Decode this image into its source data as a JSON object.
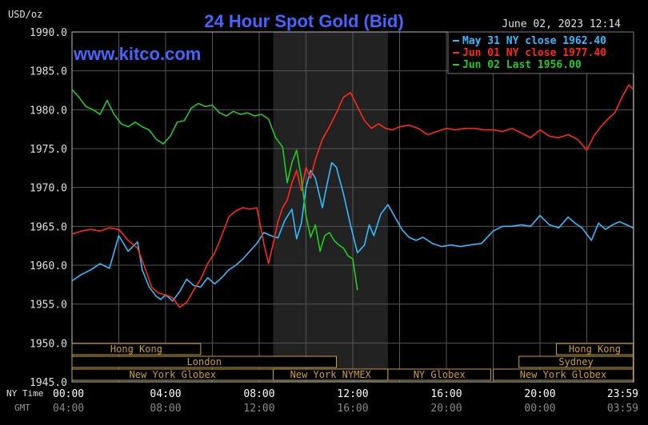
{
  "chart_data": {
    "type": "line",
    "title": "24 Hour Spot Gold (Bid)",
    "watermark": "www.kitco.com",
    "timestamp": "June 02, 2023 12:14",
    "unit_label": "USD/oz",
    "ylim": [
      1945.0,
      1990.0
    ],
    "y_ticks": [
      "1990.0",
      "1985.0",
      "1980.0",
      "1975.0",
      "1970.0",
      "1965.0",
      "1960.0",
      "1955.0",
      "1950.0",
      "1945.0"
    ],
    "x_axis_labels": {
      "ny_time_label": "NY Time",
      "gmt_label": "GMT",
      "ny_time": [
        "00:00",
        "04:00",
        "08:00",
        "12:00",
        "16:00",
        "20:00",
        "23:59"
      ],
      "gmt": [
        "04:00",
        "08:00",
        "12:00",
        "16:00",
        "20:00",
        "00:00",
        "03:59"
      ]
    },
    "grid": true,
    "legend_position": "top-right",
    "legend": [
      {
        "text": "May 31 NY close 1962.40",
        "color": "#33bbff"
      },
      {
        "text": "Jun 01 NY close 1977.40",
        "color": "#ff2a1a"
      },
      {
        "text": "Jun 02 Last 1956.00",
        "color": "#22cc22"
      }
    ],
    "sessions": [
      {
        "label": "Hong Kong",
        "start_h": 0.0,
        "end_h": 5.5
      },
      {
        "label": "London",
        "start_h": 0.0,
        "end_h": 11.3
      },
      {
        "label": "New York Globex",
        "start_h": 0.0,
        "end_h": 8.6
      },
      {
        "label": "New York NYMEX",
        "start_h": 8.6,
        "end_h": 13.5
      },
      {
        "label": "NY Globex",
        "start_h": 13.5,
        "end_h": 17.9
      },
      {
        "label": "Sydney",
        "start_h": 19.1,
        "end_h": 23.98
      },
      {
        "label": "Hong Kong",
        "start_h": 20.7,
        "end_h": 23.98
      },
      {
        "label": "New York Globex",
        "start_h": 18.0,
        "end_h": 23.98
      }
    ],
    "series": [
      {
        "name": "May 31",
        "color": "#33bbff",
        "x": [
          0,
          0.4,
          0.8,
          1.2,
          1.6,
          2.0,
          2.4,
          2.8,
          3.0,
          3.3,
          3.6,
          3.8,
          4.0,
          4.3,
          4.6,
          4.9,
          5.2,
          5.5,
          5.8,
          6.1,
          6.4,
          6.7,
          7.0,
          7.3,
          7.6,
          7.9,
          8.2,
          8.5,
          8.8,
          9.1,
          9.4,
          9.6,
          9.8,
          10.0,
          10.2,
          10.4,
          10.7,
          10.9,
          11.1,
          11.3,
          11.6,
          11.9,
          12.2,
          12.5,
          12.7,
          12.9,
          13.2,
          13.5,
          13.8,
          14.1,
          14.4,
          14.7,
          15.0,
          15.4,
          15.8,
          16.2,
          16.6,
          17.0,
          17.5,
          18.0,
          18.4,
          18.8,
          19.2,
          19.6,
          20.0,
          20.4,
          20.8,
          21.2,
          21.5,
          21.8,
          22.2,
          22.5,
          22.8,
          23.1,
          23.4,
          23.7,
          23.98
        ],
        "values": [
          1958,
          1958.8,
          1959.4,
          1960.2,
          1959.6,
          1963.8,
          1961.8,
          1963,
          1959.4,
          1957.2,
          1956,
          1955.6,
          1956.2,
          1955.4,
          1956.6,
          1958.2,
          1957.4,
          1957.2,
          1958.4,
          1957.6,
          1958.4,
          1959.4,
          1960,
          1960.8,
          1961.8,
          1962.8,
          1964.2,
          1963.8,
          1963.5,
          1965.8,
          1967.2,
          1963.4,
          1965.4,
          1970,
          1972.2,
          1971.2,
          1967.4,
          1970.4,
          1973.2,
          1972.6,
          1969.2,
          1965.2,
          1961.6,
          1962.6,
          1965.2,
          1963.8,
          1966.6,
          1967.8,
          1966.2,
          1964.6,
          1963.6,
          1963.2,
          1963.6,
          1962.8,
          1962.4,
          1962.6,
          1962.4,
          1962.6,
          1962.8,
          1964.4,
          1965,
          1965,
          1965.2,
          1965,
          1966.4,
          1965.2,
          1964.8,
          1966.2,
          1965.4,
          1964.8,
          1963.2,
          1965.4,
          1964.6,
          1965.2,
          1965.6,
          1965.2,
          1964.8
        ]
      },
      {
        "name": "Jun 01",
        "color": "#ff2a1a",
        "x": [
          0,
          0.4,
          0.8,
          1.2,
          1.6,
          2.0,
          2.4,
          2.8,
          3.1,
          3.4,
          3.7,
          4.0,
          4.3,
          4.6,
          4.9,
          5.2,
          5.5,
          5.8,
          6.1,
          6.4,
          6.7,
          7.0,
          7.3,
          7.6,
          7.9,
          8.2,
          8.4,
          8.6,
          8.8,
          9.0,
          9.2,
          9.4,
          9.6,
          9.8,
          10.0,
          10.2,
          10.4,
          10.7,
          11.0,
          11.3,
          11.6,
          11.9,
          12.2,
          12.5,
          12.8,
          13.1,
          13.4,
          13.7,
          14.0,
          14.4,
          14.8,
          15.2,
          15.6,
          16.0,
          16.4,
          16.8,
          17.2,
          17.6,
          18.0,
          18.4,
          18.8,
          19.2,
          19.6,
          20.0,
          20.4,
          20.8,
          21.2,
          21.6,
          22.0,
          22.3,
          22.6,
          22.9,
          23.2,
          23.5,
          23.8,
          23.98
        ],
        "values": [
          1964,
          1964.4,
          1964.6,
          1964.4,
          1964.8,
          1964.6,
          1963.2,
          1962.2,
          1959.8,
          1957.2,
          1956.4,
          1956.2,
          1955.8,
          1954.6,
          1955.2,
          1956.8,
          1958.2,
          1960.2,
          1961.6,
          1963.8,
          1966.2,
          1967,
          1967.4,
          1967.2,
          1967.4,
          1962.8,
          1960.2,
          1962.8,
          1965.6,
          1967.4,
          1968.4,
          1970.6,
          1972.2,
          1969.6,
          1972.6,
          1971.2,
          1973.6,
          1976.2,
          1977.8,
          1979.6,
          1981.6,
          1982.2,
          1980.4,
          1978.6,
          1977.6,
          1978.2,
          1977.6,
          1977.4,
          1977.8,
          1978,
          1977.6,
          1976.8,
          1977.2,
          1977.6,
          1977.4,
          1977.6,
          1977.6,
          1977.4,
          1977.4,
          1977.2,
          1977.6,
          1977,
          1976.4,
          1977.4,
          1976.6,
          1976.4,
          1976.8,
          1976.2,
          1974.8,
          1976.6,
          1977.8,
          1978.8,
          1979.6,
          1981.6,
          1983.2,
          1982.6
        ]
      },
      {
        "name": "Jun 02",
        "color": "#22cc22",
        "x": [
          0,
          0.3,
          0.6,
          0.9,
          1.2,
          1.5,
          1.8,
          2.1,
          2.4,
          2.7,
          3.0,
          3.3,
          3.6,
          3.9,
          4.2,
          4.5,
          4.8,
          5.1,
          5.4,
          5.7,
          6.0,
          6.3,
          6.6,
          6.9,
          7.2,
          7.5,
          7.8,
          8.1,
          8.4,
          8.7,
          9.0,
          9.2,
          9.4,
          9.6,
          9.8,
          10.0,
          10.2,
          10.4,
          10.6,
          10.8,
          11.0,
          11.2,
          11.4,
          11.6,
          11.8,
          12.0,
          12.2
        ],
        "values": [
          1982.6,
          1981.6,
          1980.4,
          1980,
          1979.4,
          1981.2,
          1979.4,
          1978.2,
          1977.8,
          1978.4,
          1977.8,
          1977.4,
          1976.2,
          1975.6,
          1976.6,
          1978.4,
          1978.6,
          1980.2,
          1980.8,
          1980.4,
          1980.6,
          1979.6,
          1979.2,
          1979.8,
          1979.4,
          1979.6,
          1979.2,
          1979.4,
          1978.8,
          1976.4,
          1975.2,
          1970.6,
          1973.2,
          1974.8,
          1971.2,
          1966.4,
          1963.6,
          1965.2,
          1961.8,
          1963.8,
          1964.2,
          1963.2,
          1962.6,
          1962.2,
          1961.2,
          1960.8,
          1956.8
        ]
      }
    ]
  }
}
